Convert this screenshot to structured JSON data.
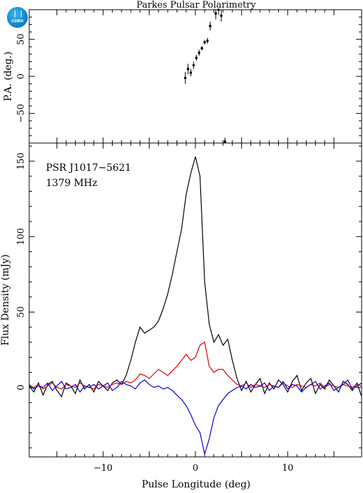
{
  "title": "Parkes Pulsar Polarimetry",
  "logo_text": "CSIRO",
  "psr_label": "PSR J1017−5621",
  "freq_label": "1379 MHz",
  "chart_data": [
    {
      "type": "scatter",
      "panel": "top",
      "ylabel": "P.A. (deg.)",
      "xlim": [
        -18,
        18
      ],
      "ylim": [
        -90,
        90
      ],
      "yticks": [
        -50,
        0,
        50
      ],
      "yticklabels": [
        "−50",
        "0",
        "50"
      ],
      "points": [
        {
          "x": -1.1,
          "y": -2,
          "err": 8
        },
        {
          "x": -0.8,
          "y": 10,
          "err": 7
        },
        {
          "x": -0.5,
          "y": 5,
          "err": 5
        },
        {
          "x": -0.2,
          "y": 15,
          "err": 5
        },
        {
          "x": 0.1,
          "y": 25,
          "err": 4
        },
        {
          "x": 0.4,
          "y": 32,
          "err": 4
        },
        {
          "x": 0.7,
          "y": 38,
          "err": 3
        },
        {
          "x": 1.0,
          "y": 46,
          "err": 3
        },
        {
          "x": 1.3,
          "y": 48,
          "err": 4
        },
        {
          "x": 1.6,
          "y": 68,
          "err": 6
        },
        {
          "x": 2.2,
          "y": 85,
          "err": 8
        },
        {
          "x": 2.5,
          "y": 90,
          "err": 7
        },
        {
          "x": 2.8,
          "y": 82,
          "err": 8
        },
        {
          "x": 3.2,
          "y": -88,
          "err": 5
        }
      ]
    },
    {
      "type": "line",
      "panel": "bottom",
      "xlabel": "Pulse Longitude (deg)",
      "ylabel": "Flux Density (mJy)",
      "xlim": [
        -18,
        18
      ],
      "ylim": [
        -46,
        162
      ],
      "xticks": [
        -10,
        0,
        10
      ],
      "xticklabels": [
        "−10",
        "0",
        "10"
      ],
      "yticks": [
        0,
        50,
        100,
        150
      ],
      "yticklabels": [
        "0",
        "50",
        "100",
        "150"
      ],
      "x": [
        -18,
        -17.5,
        -17,
        -16.5,
        -16,
        -15.5,
        -15,
        -14.5,
        -14,
        -13.5,
        -13,
        -12.5,
        -12,
        -11.5,
        -11,
        -10.5,
        -10,
        -9.5,
        -9,
        -8.5,
        -8,
        -7.5,
        -7,
        -6.5,
        -6,
        -5.5,
        -5,
        -4.5,
        -4,
        -3.5,
        -3,
        -2.5,
        -2,
        -1.5,
        -1,
        -0.5,
        0,
        0.5,
        1,
        1.5,
        2,
        2.5,
        3,
        3.5,
        4,
        4.5,
        5,
        5.5,
        6,
        6.5,
        7,
        7.5,
        8,
        8.5,
        9,
        9.5,
        10,
        10.5,
        11,
        11.5,
        12,
        12.5,
        13,
        13.5,
        14,
        14.5,
        15,
        15.5,
        16,
        16.5,
        17,
        17.5,
        18
      ],
      "series": [
        {
          "color": "#000000",
          "values": [
            1,
            -3,
            3,
            -5,
            2,
            4,
            -2,
            -6,
            3,
            1,
            -4,
            5,
            -1,
            2,
            -3,
            4,
            1,
            -2,
            3,
            5,
            2,
            8,
            18,
            30,
            40,
            36,
            38,
            40,
            44,
            52,
            62,
            75,
            90,
            105,
            128,
            142,
            153,
            140,
            70,
            42,
            30,
            35,
            28,
            32,
            18,
            6,
            -2,
            4,
            -3,
            2,
            6,
            -4,
            3,
            -1,
            5,
            2,
            -3,
            4,
            8,
            -2,
            3,
            6,
            -4,
            2,
            -1,
            5,
            1,
            -3,
            4,
            2,
            -2,
            3,
            -6
          ]
        },
        {
          "color": "#dd0000",
          "values": [
            1,
            0,
            2,
            -1,
            1,
            3,
            0,
            -1,
            2,
            1,
            0,
            3,
            1,
            0,
            -1,
            2,
            1,
            0,
            2,
            3,
            2,
            4,
            3,
            5,
            9,
            8,
            6,
            9,
            12,
            10,
            8,
            11,
            14,
            18,
            22,
            18,
            20,
            28,
            30,
            14,
            10,
            12,
            12,
            8,
            5,
            2,
            1,
            3,
            0,
            2,
            1,
            0,
            2,
            1,
            0,
            3,
            1,
            0,
            2,
            1,
            0,
            2,
            1,
            3,
            0,
            2,
            1,
            0,
            2,
            1,
            0,
            2,
            1
          ]
        },
        {
          "color": "#0000dd",
          "values": [
            2,
            -1,
            1,
            0,
            3,
            -2,
            1,
            4,
            -1,
            0,
            2,
            -3,
            1,
            0,
            2,
            -1,
            1,
            3,
            -2,
            0,
            4,
            2,
            1,
            -1,
            3,
            5,
            2,
            0,
            1,
            -1,
            0,
            -2,
            -5,
            -8,
            -12,
            -18,
            -25,
            -30,
            -44,
            -34,
            -20,
            -12,
            -8,
            -4,
            -2,
            0,
            1,
            -1,
            2,
            0,
            1,
            3,
            -2,
            1,
            0,
            4,
            -1,
            2,
            1,
            -3,
            0,
            2,
            4,
            -1,
            1,
            3,
            -2,
            0,
            2,
            5,
            -1,
            1,
            3
          ]
        }
      ]
    }
  ]
}
